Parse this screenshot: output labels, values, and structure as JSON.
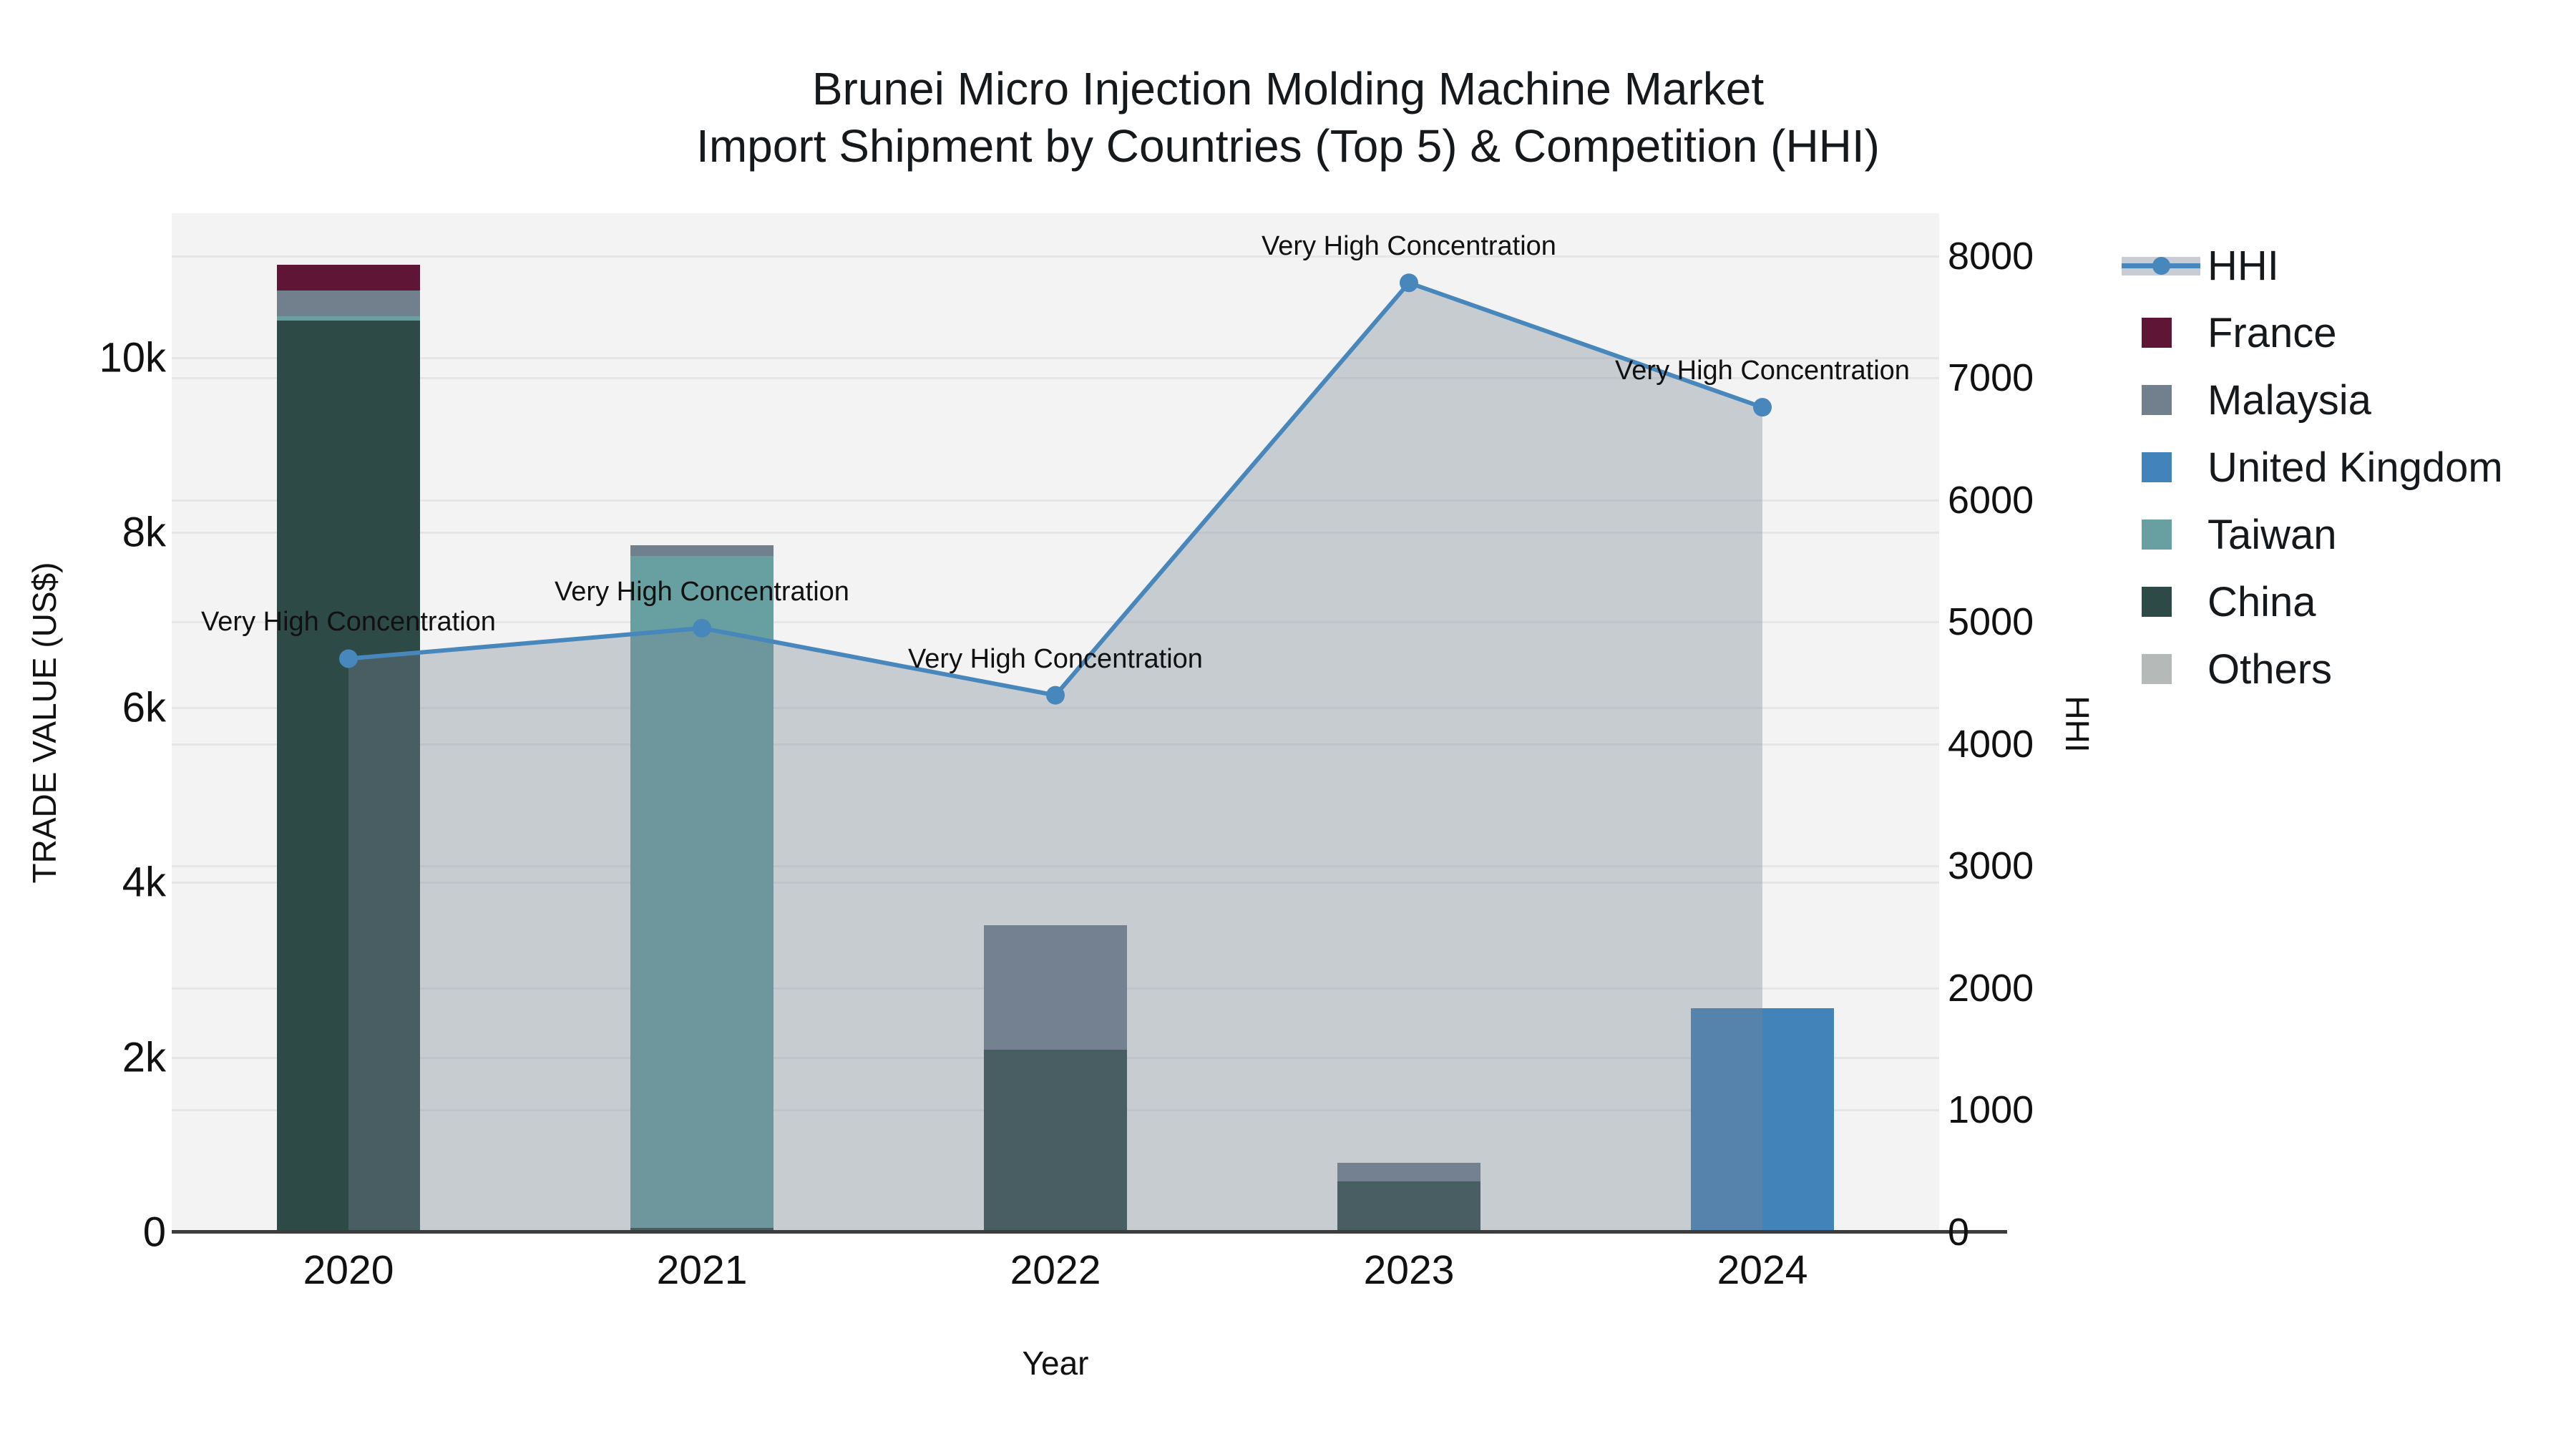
{
  "title": {
    "line1": "Brunei Micro Injection Molding Machine Market",
    "line2": "Import Shipment by Countries (Top 5) & Competition (HHI)"
  },
  "axes": {
    "x": {
      "title": "Year"
    },
    "y_left": {
      "title": "TRADE VALUE (US$)"
    },
    "y_right": {
      "title": "HHI"
    }
  },
  "legend": {
    "items": [
      {
        "label": "HHI",
        "type": "line",
        "color": "#4787BC",
        "band": "#C8CDD5"
      },
      {
        "label": "France",
        "type": "swatch",
        "color": "#5F1536"
      },
      {
        "label": "Malaysia",
        "type": "swatch",
        "color": "#72808E"
      },
      {
        "label": "United Kingdom",
        "type": "swatch",
        "color": "#4283B9"
      },
      {
        "label": "Taiwan",
        "type": "swatch",
        "color": "#68A0A1"
      },
      {
        "label": "China",
        "type": "swatch",
        "color": "#2E4A47"
      },
      {
        "label": "Others",
        "type": "swatch",
        "color": "#B5B9B8"
      }
    ]
  },
  "chart_data": {
    "type": "combo-stacked-bar-line",
    "categories": [
      "2020",
      "2021",
      "2022",
      "2023",
      "2024"
    ],
    "series": [
      {
        "name": "China",
        "color": "#2E4A47",
        "values": [
          10420,
          50,
          2090,
          580,
          0
        ]
      },
      {
        "name": "Taiwan",
        "color": "#68A0A1",
        "values": [
          50,
          7680,
          0,
          0,
          0
        ]
      },
      {
        "name": "United Kingdom",
        "color": "#4283B9",
        "values": [
          0,
          0,
          0,
          0,
          2560
        ]
      },
      {
        "name": "Malaysia",
        "color": "#72808E",
        "values": [
          300,
          120,
          1420,
          210,
          0
        ]
      },
      {
        "name": "France",
        "color": "#5F1536",
        "values": [
          290,
          0,
          0,
          0,
          0
        ]
      },
      {
        "name": "Others",
        "color": "#B5B9B8",
        "values": [
          0,
          0,
          0,
          0,
          0
        ]
      }
    ],
    "line": {
      "name": "HHI",
      "color": "#4787BC",
      "area_fill": "rgba(120,132,150,0.35)",
      "values": [
        4700,
        4950,
        4400,
        7780,
        6760
      ]
    },
    "annotations": [
      "Very High Concentration",
      "Very High Concentration",
      "Very High Concentration",
      "Very High Concentration",
      "Very High Concentration"
    ],
    "y_left": {
      "range": [
        0,
        11650
      ],
      "ticks": [
        {
          "label": "0",
          "value": 0
        },
        {
          "label": "2k",
          "value": 2000
        },
        {
          "label": "4k",
          "value": 4000
        },
        {
          "label": "6k",
          "value": 6000
        },
        {
          "label": "8k",
          "value": 8000
        },
        {
          "label": "10k",
          "value": 10000
        }
      ]
    },
    "y_right": {
      "range": [
        0,
        8350
      ],
      "ticks": [
        {
          "label": "0",
          "value": 0
        },
        {
          "label": "1000",
          "value": 1000
        },
        {
          "label": "2000",
          "value": 2000
        },
        {
          "label": "3000",
          "value": 3000
        },
        {
          "label": "4000",
          "value": 4000
        },
        {
          "label": "5000",
          "value": 5000
        },
        {
          "label": "6000",
          "value": 6000
        },
        {
          "label": "7000",
          "value": 7000
        },
        {
          "label": "8000",
          "value": 8000
        }
      ]
    },
    "grid": true,
    "legend_position": "right",
    "xlabel": "Year",
    "ylabel_left": "TRADE VALUE (US$)",
    "ylabel_right": "HHI"
  }
}
